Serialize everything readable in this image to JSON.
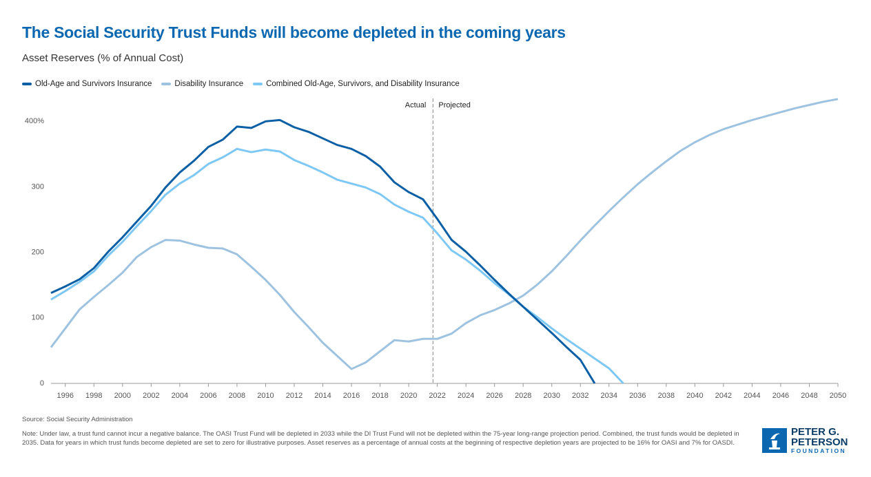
{
  "chart_data": {
    "type": "line",
    "title": "The Social Security Trust Funds will become depleted in the coming years",
    "subtitle": "Asset Reserves (% of Annual Cost)",
    "x": [
      1995,
      1996,
      1997,
      1998,
      1999,
      2000,
      2001,
      2002,
      2003,
      2004,
      2005,
      2006,
      2007,
      2008,
      2009,
      2010,
      2011,
      2012,
      2013,
      2014,
      2015,
      2016,
      2017,
      2018,
      2019,
      2020,
      2021,
      2022,
      2023,
      2024,
      2025,
      2026,
      2027,
      2028,
      2029,
      2030,
      2031,
      2032,
      2033,
      2034,
      2035,
      2036,
      2037,
      2038,
      2039,
      2040,
      2041,
      2042,
      2043,
      2044,
      2045,
      2046,
      2047,
      2048,
      2049,
      2050
    ],
    "series": [
      {
        "name": "Old-Age and Survivors Insurance",
        "color": "#0b5fa5",
        "values": [
          138,
          148,
          159,
          176,
          201,
          223,
          247,
          271,
          299,
          322,
          340,
          361,
          372,
          392,
          390,
          400,
          402,
          391,
          384,
          374,
          364,
          358,
          347,
          331,
          307,
          292,
          281,
          251,
          219,
          201,
          180,
          158,
          137,
          117,
          97,
          77,
          56,
          36,
          0,
          null,
          null,
          null,
          null,
          null,
          null,
          null,
          null,
          null,
          null,
          null,
          null,
          null,
          null,
          null,
          null,
          null
        ]
      },
      {
        "name": "Disability Insurance",
        "color": "#9dc3e0",
        "values": [
          55,
          84,
          113,
          132,
          150,
          169,
          193,
          208,
          219,
          218,
          212,
          207,
          206,
          197,
          178,
          158,
          135,
          109,
          86,
          62,
          42,
          22,
          32,
          49,
          66,
          64,
          68,
          68,
          76,
          92,
          104,
          112,
          122,
          134,
          151,
          171,
          194,
          218,
          241,
          263,
          284,
          304,
          322,
          339,
          355,
          368,
          379,
          388,
          395,
          402,
          408,
          414,
          420,
          425,
          430,
          434
        ]
      },
      {
        "name": "Combined Old-Age, Survivors, and Disability Insurance",
        "color": "#7ec8f5",
        "values": [
          128,
          141,
          155,
          171,
          195,
          216,
          240,
          263,
          288,
          305,
          318,
          335,
          345,
          358,
          353,
          357,
          354,
          341,
          332,
          322,
          311,
          305,
          299,
          289,
          273,
          262,
          253,
          229,
          203,
          189,
          172,
          153,
          136,
          117,
          101,
          84,
          68,
          53,
          38,
          23,
          0,
          null,
          null,
          null,
          null,
          null,
          null,
          null,
          null,
          null,
          null,
          null,
          null,
          null,
          null,
          null
        ]
      }
    ],
    "xlim": [
      1995,
      2050
    ],
    "xticks": [
      1996,
      1998,
      2000,
      2002,
      2004,
      2006,
      2008,
      2010,
      2012,
      2014,
      2016,
      2018,
      2020,
      2022,
      2024,
      2026,
      2028,
      2030,
      2032,
      2034,
      2036,
      2038,
      2040,
      2042,
      2044,
      2046,
      2048,
      2050
    ],
    "ylim": [
      0,
      435
    ],
    "yticks": [
      0,
      100,
      200,
      300,
      {
        "value": 400,
        "label": "400%"
      }
    ],
    "grid": false,
    "divider": {
      "x": 2021.7,
      "left_label": "Actual",
      "right_label": "Projected"
    },
    "source": "Source: Social Security Administration",
    "note": "Note: Under law, a trust fund cannot incur a negative balance. The OASI Trust Fund will be depleted in 2033 while the DI Trust Fund will not be depleted within the 75-year long-range projection period. Combined, the trust funds would be depleted in 2035. Data for years in which trust funds become depleted are set to zero for illustrative purposes. Asset reserves as a percentage of annual costs at the beginning of respective depletion years are projected to be 16% for OASI and 7% for OASDI.",
    "logo": {
      "line1": "PETER G.",
      "line2": "PETERSON",
      "line3": "FOUNDATION"
    }
  }
}
